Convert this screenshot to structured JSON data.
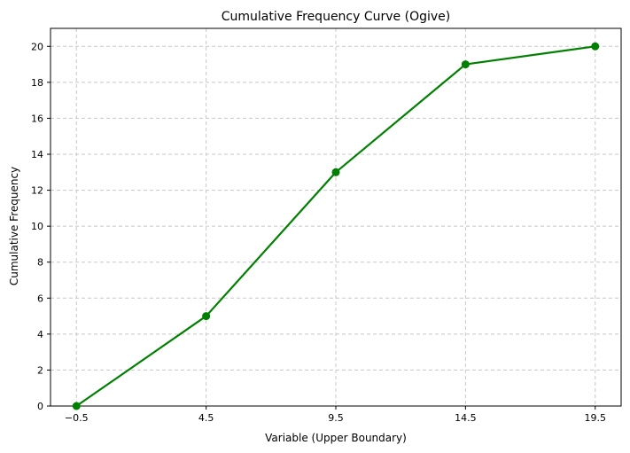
{
  "chart_data": {
    "type": "line",
    "title": "Cumulative Frequency Curve (Ogive)",
    "xlabel": "Variable (Upper Boundary)",
    "ylabel": "Cumulative Frequency",
    "x": [
      -0.5,
      4.5,
      9.5,
      14.5,
      19.5
    ],
    "x_tick_labels": [
      "−0.5",
      "4.5",
      "9.5",
      "14.5",
      "19.5"
    ],
    "series": [
      {
        "values": [
          0,
          5,
          13,
          19,
          20
        ],
        "color": "#008000",
        "marker": "circle"
      }
    ],
    "xlim": [
      -1.5,
      20.5
    ],
    "ylim": [
      0,
      21
    ],
    "y_ticks": [
      0,
      2,
      4,
      6,
      8,
      10,
      12,
      14,
      16,
      18,
      20
    ],
    "grid": true,
    "grid_style": "dashed",
    "grid_color": "#c8c8c8",
    "legend": "none"
  }
}
